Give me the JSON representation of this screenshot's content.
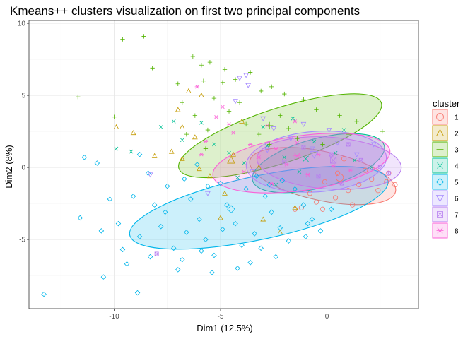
{
  "chart_data": {
    "type": "scatter",
    "title": "Kmeans++ clusters visualization on first two principal components",
    "xlabel": "Dim1 (12.5%)",
    "ylabel": "Dim2 (8%)",
    "xlim": [
      -14,
      4.3
    ],
    "ylim": [
      -9.8,
      10.2
    ],
    "x_ticks": [
      {
        "value": -10,
        "label": "-10"
      },
      {
        "value": -5,
        "label": "-5"
      },
      {
        "value": 0,
        "label": "0"
      }
    ],
    "y_ticks": [
      {
        "value": -5,
        "label": "-5"
      },
      {
        "value": 0,
        "label": "0"
      },
      {
        "value": 5,
        "label": "5"
      },
      {
        "value": 10,
        "label": "10"
      }
    ],
    "grid": true,
    "legend_title": "cluster",
    "legend_position": "right",
    "series": [
      {
        "name": "1",
        "color": "#F8766D",
        "shape": "circle-open",
        "centroid": [
          0.6,
          -0.7
        ],
        "ellipse": {
          "center": [
            -0.2,
            -0.6
          ],
          "rx": 3.5,
          "ry": 1.7,
          "angle_deg": -12
        },
        "points": [
          [
            1.5,
            -1.2
          ],
          [
            2.1,
            -0.8
          ],
          [
            2.8,
            -1.0
          ],
          [
            3.2,
            -1.2
          ],
          [
            1.0,
            -1.6
          ],
          [
            0.4,
            -2.1
          ],
          [
            -0.5,
            -2.4
          ],
          [
            -1.2,
            -2.8
          ],
          [
            -0.1,
            -1.0
          ],
          [
            1.8,
            -0.2
          ],
          [
            2.4,
            -1.6
          ],
          [
            0.8,
            0.6
          ],
          [
            -0.8,
            -1.8
          ],
          [
            1.2,
            -2.6
          ],
          [
            2.9,
            -0.4
          ],
          [
            -0.2,
            -2.9
          ],
          [
            -1.5,
            -2.9
          ],
          [
            0.5,
            -0.4
          ]
        ]
      },
      {
        "name": "2",
        "color": "#C49A00",
        "shape": "triangle-open",
        "centroid": [
          -4.5,
          0.5
        ],
        "ellipse": null,
        "points": [
          [
            -9.9,
            2.8
          ],
          [
            -9.1,
            2.4
          ],
          [
            -6.8,
            2.8
          ],
          [
            -5.9,
            5.0
          ],
          [
            -6.5,
            5.3
          ],
          [
            -8.1,
            0.8
          ],
          [
            -7.3,
            1.1
          ],
          [
            -6.8,
            0.6
          ],
          [
            -6.0,
            -0.1
          ],
          [
            -5.5,
            -0.6
          ],
          [
            -4.8,
            -1.8
          ],
          [
            -3.0,
            -3.6
          ],
          [
            -2.2,
            -4.5
          ],
          [
            -7.0,
            4.0
          ],
          [
            -4.0,
            3.2
          ],
          [
            -3.2,
            0.0
          ],
          [
            -1.5,
            -2.8
          ],
          [
            -4.4,
            0.9
          ],
          [
            -6.2,
            2.1
          ],
          [
            -5.0,
            -3.5
          ]
        ]
      },
      {
        "name": "3",
        "color": "#53B400",
        "shape": "plus",
        "centroid": [
          -2.7,
          2.9
        ],
        "ellipse": {
          "center": [
            -2.2,
            2.2
          ],
          "rx": 5.0,
          "ry": 1.9,
          "angle_deg": 18
        },
        "points": [
          [
            -9.6,
            8.9
          ],
          [
            -8.6,
            9.1
          ],
          [
            -8.2,
            6.9
          ],
          [
            -11.7,
            4.9
          ],
          [
            -10.0,
            3.5
          ],
          [
            -6.3,
            7.7
          ],
          [
            -5.9,
            7.1
          ],
          [
            -5.5,
            7.3
          ],
          [
            -4.8,
            6.8
          ],
          [
            -4.3,
            6.1
          ],
          [
            -3.6,
            6.6
          ],
          [
            -3.1,
            5.3
          ],
          [
            -2.6,
            5.6
          ],
          [
            -2.0,
            5.1
          ],
          [
            -1.1,
            4.7
          ],
          [
            -0.5,
            4.0
          ],
          [
            0.6,
            3.6
          ],
          [
            1.4,
            3.2
          ],
          [
            2.6,
            2.5
          ],
          [
            -6.8,
            4.5
          ],
          [
            -6.2,
            3.6
          ],
          [
            -5.6,
            2.6
          ],
          [
            -4.6,
            3.9
          ],
          [
            -3.8,
            3.0
          ],
          [
            -3.2,
            2.3
          ],
          [
            -2.7,
            1.6
          ],
          [
            -1.4,
            2.0
          ],
          [
            -0.2,
            1.6
          ],
          [
            1.0,
            2.3
          ],
          [
            -7.0,
            5.8
          ],
          [
            -5.3,
            4.8
          ],
          [
            -4.1,
            4.5
          ],
          [
            -6.6,
            2.3
          ],
          [
            -5.7,
            1.3
          ],
          [
            -2.2,
            3.6
          ],
          [
            -1.8,
            2.7
          ],
          [
            -4.9,
            5.9
          ],
          [
            -5.8,
            6.0
          ]
        ]
      },
      {
        "name": "4",
        "color": "#00C094",
        "shape": "x",
        "centroid": [
          -1.0,
          0.6
        ],
        "ellipse": {
          "center": [
            -0.4,
            0.3
          ],
          "rx": 3.2,
          "ry": 1.7,
          "angle_deg": 15
        },
        "points": [
          [
            -9.9,
            1.3
          ],
          [
            -9.2,
            1.1
          ],
          [
            -7.8,
            2.8
          ],
          [
            -7.2,
            3.2
          ],
          [
            -6.8,
            1.9
          ],
          [
            -5.3,
            1.6
          ],
          [
            -4.6,
            1.0
          ],
          [
            -3.9,
            0.3
          ],
          [
            -2.8,
            1.5
          ],
          [
            -2.0,
            0.7
          ],
          [
            -1.3,
            -0.3
          ],
          [
            -0.6,
            1.8
          ],
          [
            0.4,
            1.0
          ],
          [
            1.3,
            0.5
          ],
          [
            2.1,
            0.0
          ],
          [
            -3.0,
            2.8
          ],
          [
            -1.6,
            3.4
          ],
          [
            -5.9,
            3.1
          ],
          [
            -4.2,
            -0.7
          ],
          [
            -2.4,
            -1.2
          ],
          [
            0.8,
            2.6
          ]
        ]
      },
      {
        "name": "5",
        "color": "#00B6EB",
        "shape": "diamond-open",
        "centroid": [
          -4.5,
          -2.9
        ],
        "ellipse": {
          "center": [
            -3.2,
            -2.8
          ],
          "rx": 6.2,
          "ry": 2.2,
          "angle_deg": 12
        },
        "points": [
          [
            -13.3,
            -8.8
          ],
          [
            -11.4,
            0.7
          ],
          [
            -11.6,
            -3.5
          ],
          [
            -10.8,
            0.3
          ],
          [
            -10.6,
            -4.4
          ],
          [
            -10.5,
            -7.6
          ],
          [
            -9.8,
            -3.9
          ],
          [
            -9.4,
            -6.7
          ],
          [
            -8.9,
            -8.7
          ],
          [
            -9.6,
            -5.7
          ],
          [
            -8.8,
            -4.8
          ],
          [
            -8.1,
            -2.6
          ],
          [
            -7.8,
            -4.1
          ],
          [
            -7.2,
            -5.6
          ],
          [
            -7.0,
            -7.1
          ],
          [
            -7.5,
            -1.3
          ],
          [
            -6.7,
            -0.8
          ],
          [
            -6.4,
            -2.2
          ],
          [
            -6.0,
            -3.6
          ],
          [
            -5.7,
            -5.0
          ],
          [
            -5.3,
            -6.1
          ],
          [
            -5.0,
            -1.1
          ],
          [
            -4.7,
            -2.6
          ],
          [
            -4.3,
            -3.9
          ],
          [
            -4.0,
            -5.4
          ],
          [
            -3.6,
            -6.6
          ],
          [
            -3.3,
            -0.6
          ],
          [
            -2.9,
            -2.0
          ],
          [
            -2.6,
            -3.1
          ],
          [
            -2.2,
            -4.2
          ],
          [
            -1.8,
            -5.1
          ],
          [
            -1.5,
            -1.5
          ],
          [
            -1.1,
            -2.6
          ],
          [
            -0.7,
            -3.6
          ],
          [
            -0.3,
            -4.4
          ],
          [
            0.2,
            -2.9
          ],
          [
            -8.4,
            -0.4
          ],
          [
            -8.8,
            0.9
          ],
          [
            -6.1,
            0.2
          ],
          [
            -5.6,
            -1.3
          ],
          [
            -3.8,
            -1.5
          ],
          [
            -2.1,
            -0.9
          ],
          [
            -9.1,
            -2.0
          ],
          [
            -7.6,
            -3.1
          ],
          [
            -6.6,
            -4.5
          ],
          [
            -4.9,
            -4.3
          ],
          [
            -3.1,
            -5.6
          ],
          [
            -2.4,
            -6.2
          ],
          [
            -5.4,
            -7.3
          ],
          [
            -4.2,
            -7.0
          ],
          [
            -1.0,
            -4.8
          ],
          [
            -10.2,
            -2.2
          ],
          [
            -8.3,
            -6.2
          ],
          [
            -6.8,
            -6.4
          ],
          [
            -5.9,
            -5.8
          ],
          [
            -3.4,
            -4.6
          ],
          [
            -0.9,
            -3.9
          ],
          [
            -2.7,
            -1.2
          ]
        ]
      },
      {
        "name": "6",
        "color": "#A58AFF",
        "shape": "triangle-down-open",
        "centroid": [
          -0.6,
          0.9
        ],
        "ellipse": {
          "center": [
            -0.5,
            0.4
          ],
          "rx": 3.3,
          "ry": 2.1,
          "angle_deg": 4
        },
        "points": [
          [
            -4.1,
            6.2
          ],
          [
            -3.8,
            6.4
          ],
          [
            -3.7,
            5.7
          ],
          [
            -4.3,
            4.6
          ],
          [
            -3.0,
            3.4
          ],
          [
            -2.5,
            2.7
          ],
          [
            -1.7,
            2.0
          ],
          [
            -0.7,
            1.3
          ],
          [
            0.5,
            1.7
          ],
          [
            1.4,
            0.9
          ],
          [
            -8.3,
            -0.5
          ],
          [
            -5.6,
            -1.8
          ],
          [
            -2.8,
            1.2
          ],
          [
            -1.1,
            3.0
          ],
          [
            0.1,
            2.6
          ],
          [
            2.2,
            1.6
          ],
          [
            -3.5,
            -0.3
          ]
        ]
      },
      {
        "name": "7",
        "color": "#B87FF0",
        "shape": "square-x-open",
        "centroid": [
          0.3,
          0.5
        ],
        "ellipse": {
          "center": [
            0.1,
            0.3
          ],
          "rx": 3.4,
          "ry": 1.8,
          "angle_deg": -4
        },
        "points": [
          [
            -8.0,
            -6.0
          ],
          [
            -1.1,
            1.4
          ],
          [
            0.2,
            0.9
          ],
          [
            1.6,
            0.5
          ],
          [
            2.5,
            0.0
          ],
          [
            -0.4,
            -0.6
          ],
          [
            1.0,
            1.6
          ],
          [
            -2.0,
            0.4
          ],
          [
            2.9,
            -0.4
          ],
          [
            0.7,
            -1.1
          ]
        ]
      },
      {
        "name": "8",
        "color": "#FB61D7",
        "shape": "asterisk",
        "centroid": [
          -1.4,
          0.8
        ],
        "ellipse": {
          "center": [
            -1.2,
            0.3
          ],
          "rx": 4.2,
          "ry": 1.9,
          "angle_deg": 8
        },
        "points": [
          [
            -6.1,
            5.6
          ],
          [
            -5.7,
            1.8
          ],
          [
            -5.9,
            0.9
          ],
          [
            -4.6,
            3.0
          ],
          [
            -4.4,
            2.4
          ],
          [
            -4.9,
            4.2
          ],
          [
            -3.6,
            1.6
          ],
          [
            -3.2,
            0.7
          ],
          [
            -2.8,
            2.9
          ],
          [
            -2.4,
            1.3
          ],
          [
            -1.9,
            0.2
          ],
          [
            -1.4,
            1.7
          ],
          [
            -0.9,
            -0.5
          ],
          [
            -0.4,
            0.9
          ],
          [
            0.3,
            0.1
          ],
          [
            1.1,
            -0.2
          ],
          [
            -3.9,
            -0.3
          ],
          [
            -2.6,
            -1.1
          ],
          [
            -5.2,
            3.5
          ],
          [
            -1.5,
            3.2
          ]
        ]
      }
    ]
  }
}
